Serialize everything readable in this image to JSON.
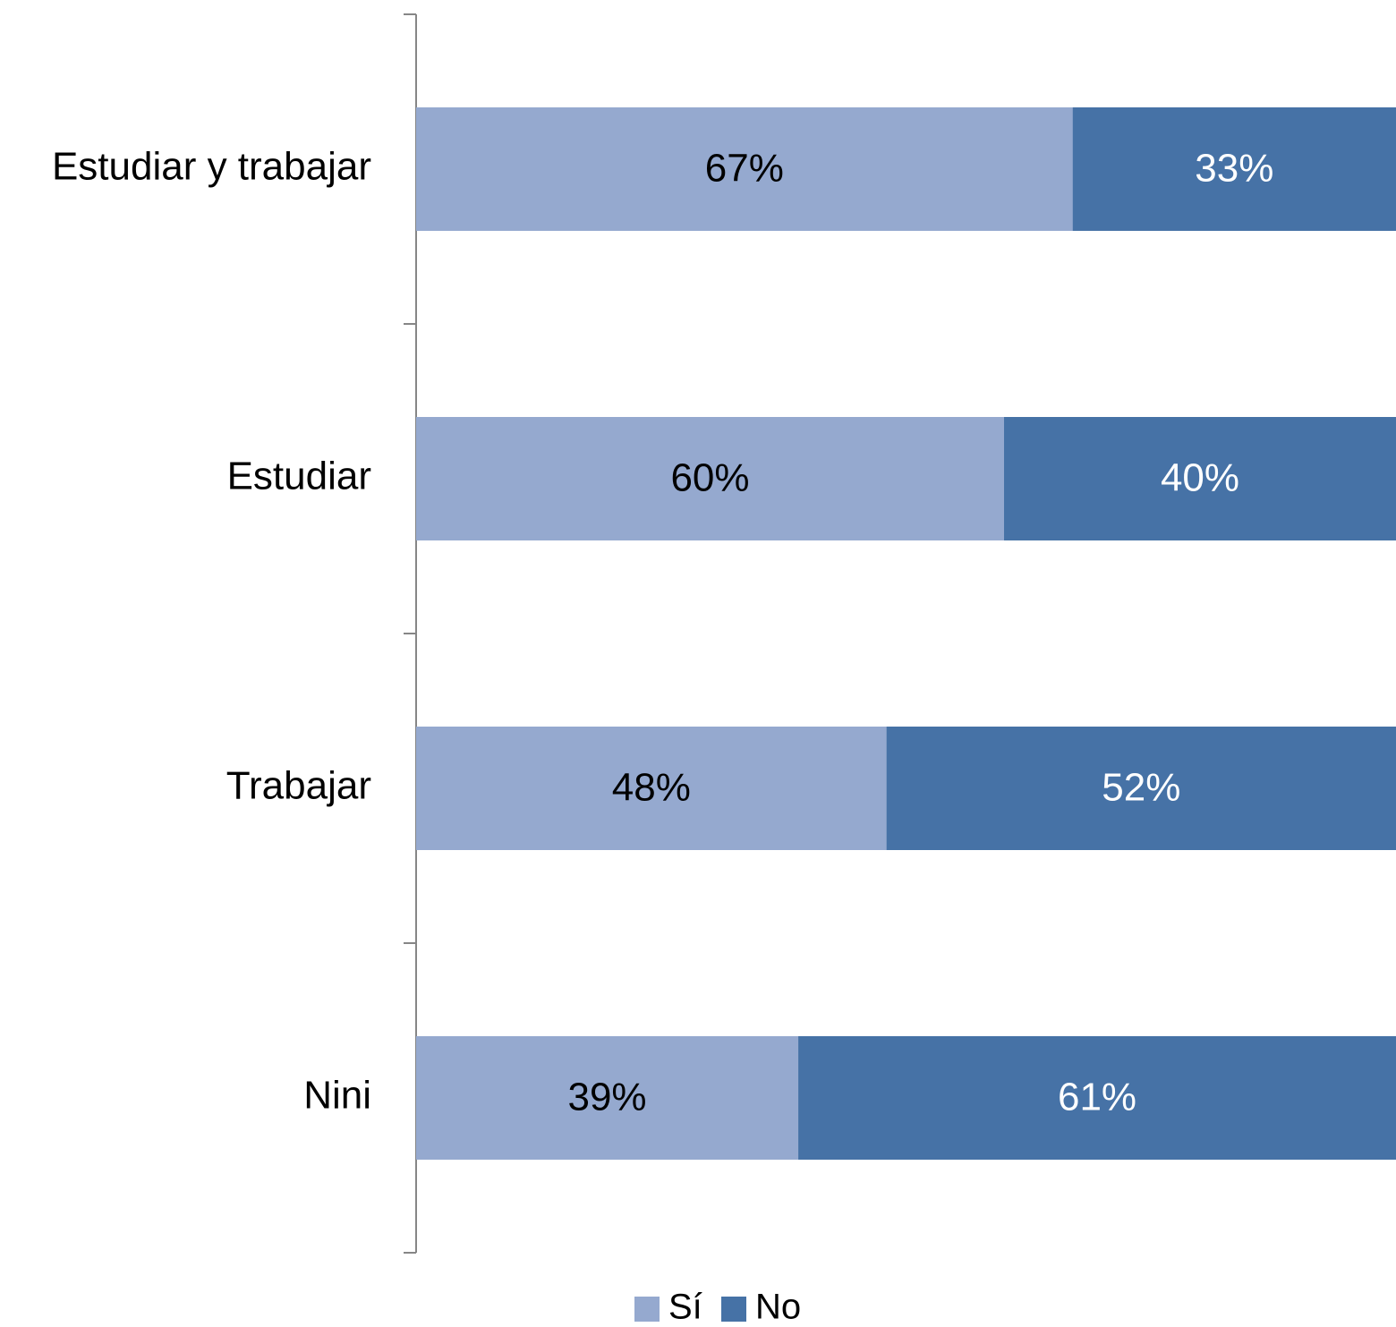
{
  "chart_data": {
    "type": "bar",
    "orientation": "horizontal",
    "stacked": true,
    "percent_stacked": true,
    "categories": [
      "Estudiar y trabajar",
      "Estudiar",
      "Trabajar",
      "Nini"
    ],
    "series": [
      {
        "name": "Sí",
        "values": [
          67,
          60,
          48,
          39
        ],
        "labels": [
          "67%",
          "60%",
          "48%",
          "39%"
        ],
        "color": "#95a9cf",
        "label_color": "#000000"
      },
      {
        "name": "No",
        "values": [
          33,
          40,
          52,
          61
        ],
        "labels": [
          "33%",
          "40%",
          "52%",
          "61%"
        ],
        "color": "#4672a6",
        "label_color": "#ffffff"
      }
    ],
    "xlim": [
      0,
      100
    ],
    "grid": false,
    "legend_position": "bottom"
  }
}
